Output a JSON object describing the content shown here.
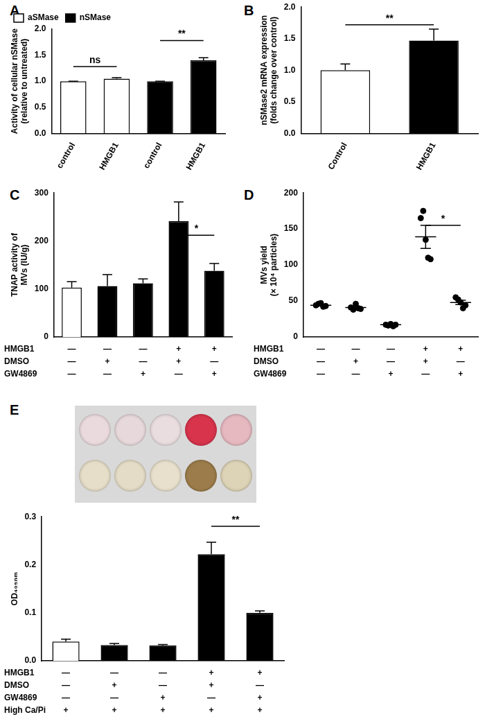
{
  "chart_data": [
    {
      "panel": "A",
      "type": "bar",
      "categories": [
        "control",
        "HMGB1",
        "control",
        "HMGB1"
      ],
      "series": [
        {
          "name": "aSMase",
          "color": "#ffffff",
          "values": [
            1.0,
            1.05,
            null,
            null
          ],
          "errors": [
            0,
            0.02,
            null,
            null
          ]
        },
        {
          "name": "nSMase",
          "color": "#000000",
          "values": [
            null,
            null,
            1.0,
            1.4
          ],
          "errors": [
            null,
            null,
            0,
            0.05
          ]
        }
      ],
      "y_label": [
        "Activity of cellular nSMase",
        "(relative to untreated)"
      ],
      "ylim": [
        0,
        2
      ],
      "yticks": [
        {
          "value": 0,
          "label": "0.0"
        },
        0.5,
        {
          "value": 1,
          "label": "1.0"
        },
        1.5,
        {
          "value": 2,
          "label": "2.0"
        }
      ],
      "legend": "top-left",
      "grid": false,
      "annotations": [
        {
          "text": "ns",
          "x": [
            0,
            1
          ],
          "y": 1.28
        },
        {
          "text": "**",
          "x": [
            2,
            3
          ],
          "y": 1.78
        }
      ]
    },
    {
      "panel": "B",
      "type": "bar",
      "categories": [
        "Control",
        "HMGB1"
      ],
      "values": [
        1.0,
        1.47
      ],
      "errors": [
        0.1,
        0.18
      ],
      "colors": [
        "#ffffff",
        "#000000"
      ],
      "y_label": [
        "nSMase2 mRNA expression",
        "(folds change over control)"
      ],
      "ylim": [
        0,
        2
      ],
      "yticks": [
        {
          "value": 0,
          "label": "0.0"
        },
        0.5,
        {
          "value": 1,
          "label": "1.0"
        },
        1.5,
        {
          "value": 2,
          "label": "2.0"
        }
      ],
      "grid": false,
      "annotations": [
        {
          "text": "**",
          "x": [
            0,
            1
          ],
          "y": 1.72
        }
      ]
    },
    {
      "panel": "C",
      "type": "bar",
      "categories": [
        null,
        null,
        null,
        null,
        null
      ],
      "values": [
        103,
        106,
        112,
        241,
        138
      ],
      "errors": [
        12,
        24,
        9,
        40,
        15
      ],
      "colors": [
        "#ffffff",
        "#000000",
        "#000000",
        "#000000",
        "#000000"
      ],
      "y_label": [
        "TNAP activity of",
        "MVs (IU/g)"
      ],
      "ylim": [
        0,
        300
      ],
      "yticks": [
        0,
        100,
        200,
        300
      ],
      "grid": false,
      "annotations": [
        {
          "text": "*",
          "x": [
            3,
            4
          ],
          "y": 212
        }
      ],
      "conditions": [
        {
          "name": "HMGB1",
          "values": [
            "—",
            "—",
            "—",
            "+",
            "+"
          ]
        },
        {
          "name": "DMSO",
          "values": [
            "—",
            "+",
            "—",
            "+",
            "—"
          ]
        },
        {
          "name": "GW4869",
          "values": [
            "—",
            "—",
            "+",
            "—",
            "+"
          ]
        }
      ]
    },
    {
      "panel": "D",
      "type": "dot",
      "categories": [
        null,
        null,
        null,
        null,
        null
      ],
      "points": [
        [
          44,
          46,
          47,
          42,
          43
        ],
        [
          41,
          38,
          46,
          40,
          39
        ],
        [
          17,
          16,
          18,
          15,
          17
        ],
        [
          165,
          175,
          135,
          110,
          108
        ],
        [
          55,
          52,
          48,
          40,
          44
        ]
      ],
      "means": [
        44,
        41,
        17,
        139,
        48
      ],
      "errors": [
        1,
        1.5,
        0.5,
        16,
        3
      ],
      "color": "#000000",
      "marker": "circle",
      "y_label": [
        "MVs yield",
        "(× 10⁴ particles)"
      ],
      "ylim": [
        0,
        200
      ],
      "yticks": [
        0,
        50,
        100,
        150,
        200
      ],
      "grid": false,
      "annotations": [
        {
          "text": "*",
          "x": [
            3,
            4
          ],
          "y": 155
        }
      ],
      "conditions": [
        {
          "name": "HMGB1",
          "values": [
            "—",
            "—",
            "—",
            "+",
            "+"
          ]
        },
        {
          "name": "DMSO",
          "values": [
            "—",
            "+",
            "—",
            "+",
            "—"
          ]
        },
        {
          "name": "GW4869",
          "values": [
            "—",
            "—",
            "+",
            "—",
            "+"
          ]
        }
      ]
    },
    {
      "panel": "E",
      "type": "bar",
      "categories": [
        null,
        null,
        null,
        null,
        null
      ],
      "values": [
        0.04,
        0.033,
        0.032,
        0.222,
        0.1
      ],
      "errors": [
        0.005,
        0.003,
        0.002,
        0.025,
        0.004
      ],
      "colors": [
        "#ffffff",
        "#000000",
        "#000000",
        "#000000",
        "#000000"
      ],
      "y_label": "OD₄₀₅ₙₘ",
      "ylim": [
        0,
        0.3
      ],
      "yticks": [
        {
          "value": 0,
          "label": "0.0"
        },
        0.1,
        0.2,
        0.3
      ],
      "grid": false,
      "annotations": [
        {
          "text": "**",
          "x": [
            3,
            4
          ],
          "y": 0.28
        }
      ],
      "conditions": [
        {
          "name": "HMGB1",
          "values": [
            "—",
            "—",
            "—",
            "+",
            "+"
          ]
        },
        {
          "name": "DMSO",
          "values": [
            "—",
            "+",
            "—",
            "+",
            "—"
          ]
        },
        {
          "name": "GW4869",
          "values": [
            "—",
            "—",
            "+",
            "—",
            "+"
          ]
        },
        {
          "name": "High Ca/Pi",
          "values": [
            "+",
            "+",
            "+",
            "+",
            "+"
          ]
        }
      ]
    }
  ]
}
